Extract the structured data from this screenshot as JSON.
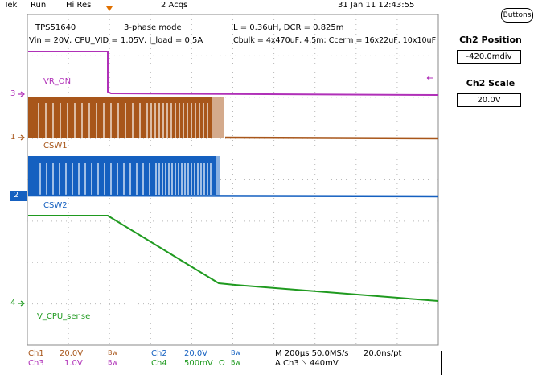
{
  "status_bar": {
    "brand": "Tek",
    "run_state": "Run",
    "acq_mode": "Hi Res",
    "acquisitions": "2 Acqs",
    "datetime": "31 Jan 11 12:43:55"
  },
  "buttons_label": "Buttons",
  "side_panel": {
    "position_title": "Ch2 Position",
    "position_value": "-420.0mdiv",
    "scale_title": "Ch2 Scale",
    "scale_value": "20.0V"
  },
  "notes": {
    "device": "TPS51640",
    "mode": "3-phase mode",
    "conditions": "Vin = 20V, CPU_VID = 1.05V, I_load = 0.5A",
    "inductor": "L = 0.36uH, DCR = 0.825m",
    "caps": "Cbulk = 4x470uF, 4.5m;  Ccerm = 16x22uF, 10x10uF"
  },
  "traces": {
    "ch3": {
      "marker": "3",
      "label": "VR_ON",
      "color": "#b030b8"
    },
    "ch1": {
      "marker": "1",
      "label": "CSW1",
      "color": "#a8561a"
    },
    "ch2": {
      "marker": "2",
      "label": "CSW2",
      "color": "#1560c0"
    },
    "ch4": {
      "marker": "4",
      "label": "V_CPU_sense",
      "color": "#1f9a1f"
    }
  },
  "footer": {
    "ch1": {
      "name": "Ch1",
      "scale": "20.0V",
      "bw": "Bw"
    },
    "ch3": {
      "name": "Ch3",
      "scale": "1.0V",
      "bw": "Bw"
    },
    "ch2": {
      "name": "Ch2",
      "scale": "20.0V",
      "bw": "Bw"
    },
    "ch4": {
      "name": "Ch4",
      "scale": "500mV",
      "unit": "Ω",
      "bw": "Bw"
    },
    "timebase": "M 200µs 50.0MS/s",
    "sample_interval": "20.0ns/pt",
    "trigger": "A  Ch3  ⟍  440mV"
  },
  "colors": {
    "ch1": "#a8561a",
    "ch2": "#1560c0",
    "ch3": "#b030b8",
    "ch4": "#1f9a1f",
    "trigger_marker": "#e07000",
    "grid": "#b8b8b8"
  }
}
